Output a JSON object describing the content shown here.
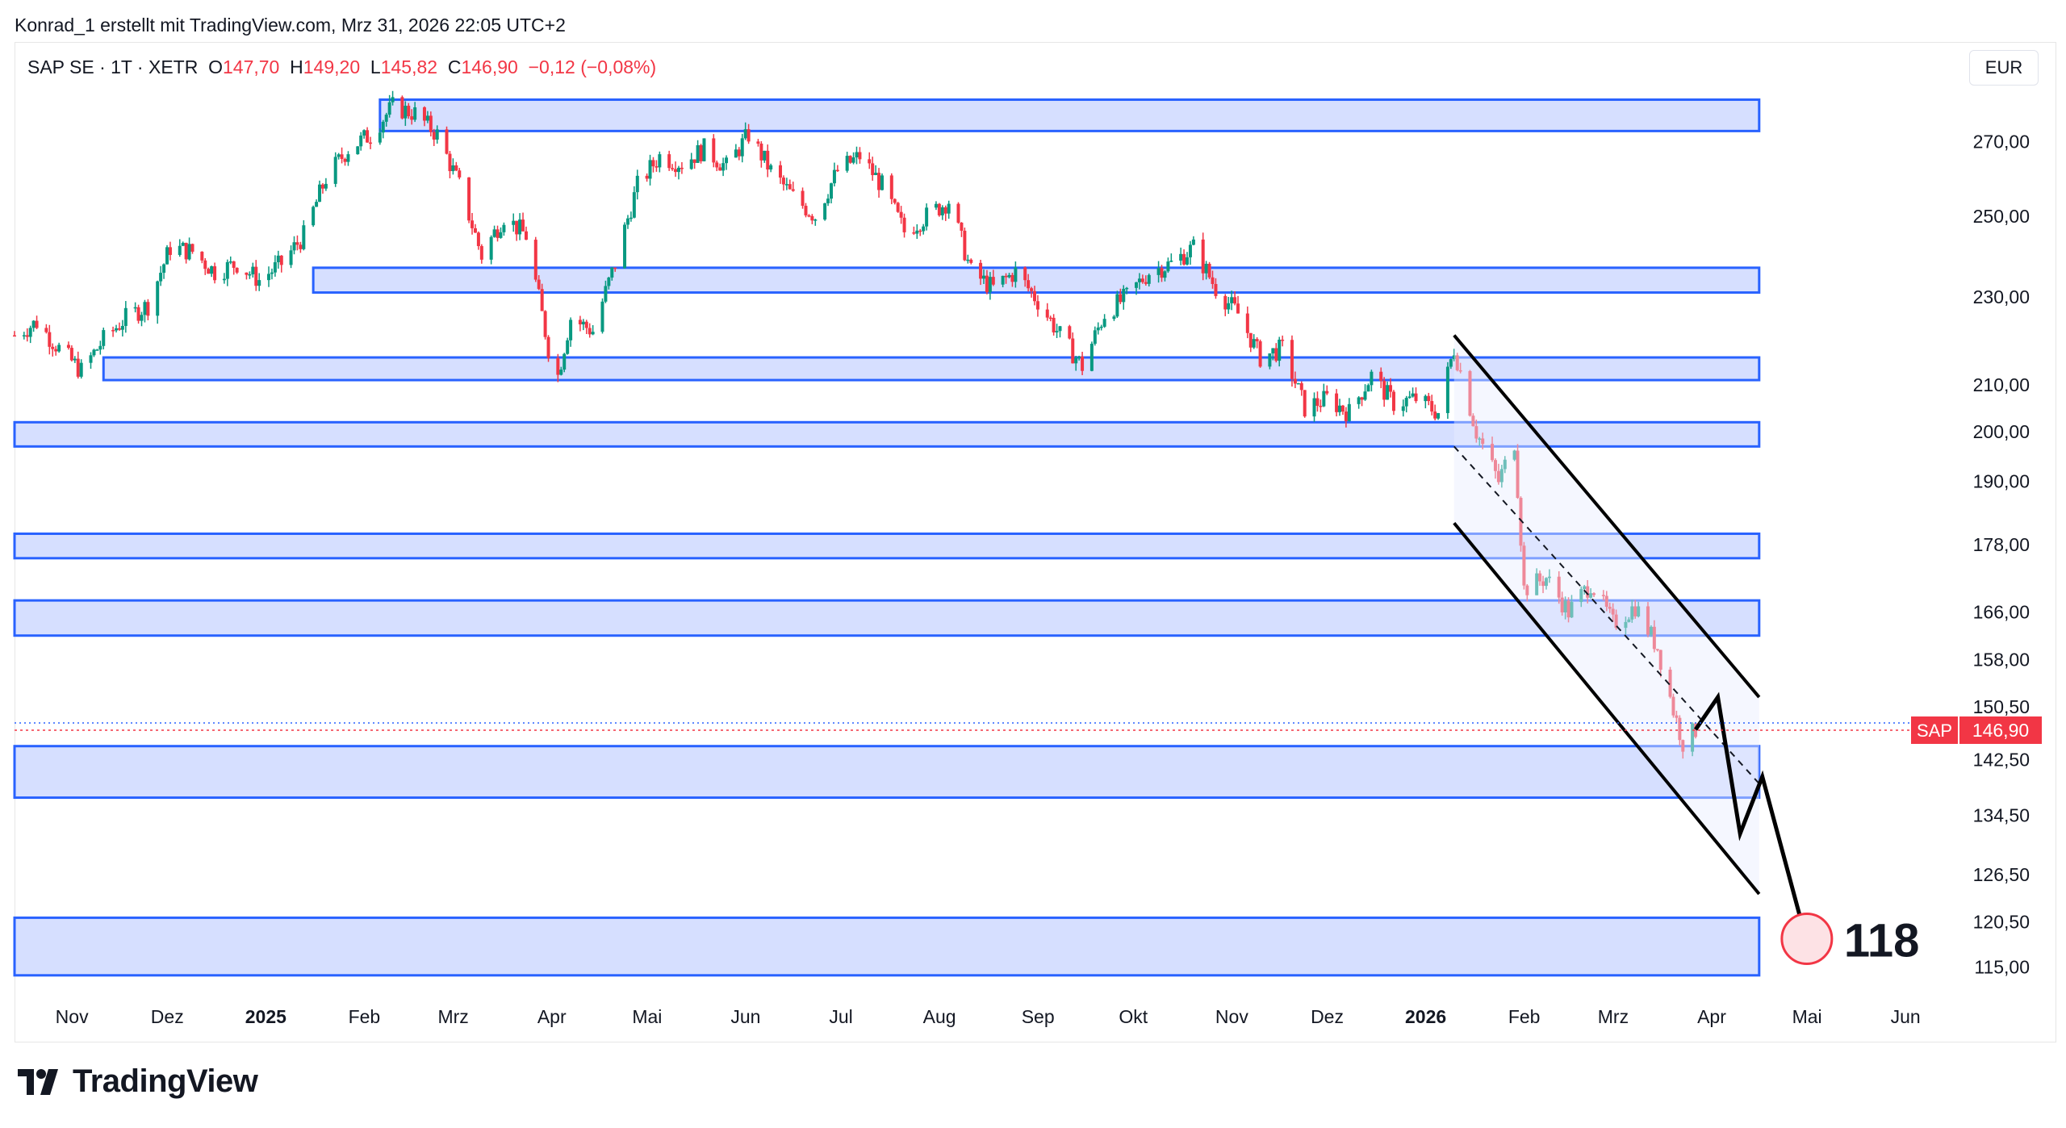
{
  "header": {
    "attribution": "Konrad_1 erstellt mit TradingView.com, Mrz 31, 2026 22:05 UTC+2"
  },
  "legend": {
    "symbol": "SAP SE · 1T · XETR",
    "open_label": "O",
    "open": "147,70",
    "high_label": "H",
    "high": "149,20",
    "low_label": "L",
    "low": "145,82",
    "close_label": "C",
    "close": "146,90",
    "change": "−0,12 (−0,08%)"
  },
  "currency": "EUR",
  "price_tag": {
    "symbol": "SAP",
    "value": "146,90"
  },
  "target": {
    "label": "118"
  },
  "brand": {
    "name": "TradingView"
  },
  "colors": {
    "up": "#089981",
    "down": "#f23645",
    "zone_fill": "#d1dcff",
    "zone_border": "#2962ff",
    "accent": "#f23645"
  },
  "chart_data": {
    "type": "candlestick",
    "symbol": "SAP SE",
    "interval": "1T",
    "exchange": "XETR",
    "currency": "EUR",
    "x_ticks": [
      {
        "date": "2024-11-01",
        "label": "Nov",
        "bold": false
      },
      {
        "date": "2024-12-01",
        "label": "Dez",
        "bold": false
      },
      {
        "date": "2025-01-01",
        "label": "2025",
        "bold": true
      },
      {
        "date": "2025-02-01",
        "label": "Feb",
        "bold": false
      },
      {
        "date": "2025-03-01",
        "label": "Mrz",
        "bold": false
      },
      {
        "date": "2025-04-01",
        "label": "Apr",
        "bold": false
      },
      {
        "date": "2025-05-01",
        "label": "Mai",
        "bold": false
      },
      {
        "date": "2025-06-01",
        "label": "Jun",
        "bold": false
      },
      {
        "date": "2025-07-01",
        "label": "Jul",
        "bold": false
      },
      {
        "date": "2025-08-01",
        "label": "Aug",
        "bold": false
      },
      {
        "date": "2025-09-01",
        "label": "Sep",
        "bold": false
      },
      {
        "date": "2025-10-01",
        "label": "Okt",
        "bold": false
      },
      {
        "date": "2025-11-01",
        "label": "Nov",
        "bold": false
      },
      {
        "date": "2025-12-01",
        "label": "Dez",
        "bold": false
      },
      {
        "date": "2026-01-01",
        "label": "2026",
        "bold": true
      },
      {
        "date": "2026-02-01",
        "label": "Feb",
        "bold": false
      },
      {
        "date": "2026-03-01",
        "label": "Mrz",
        "bold": false
      },
      {
        "date": "2026-04-01",
        "label": "Apr",
        "bold": false
      },
      {
        "date": "2026-05-01",
        "label": "Mai",
        "bold": false
      },
      {
        "date": "2026-06-01",
        "label": "Jun",
        "bold": false
      }
    ],
    "y_ticks": [
      {
        "value": 270,
        "label": "270,00"
      },
      {
        "value": 250,
        "label": "250,00"
      },
      {
        "value": 230,
        "label": "230,00"
      },
      {
        "value": 210,
        "label": "210,00"
      },
      {
        "value": 200,
        "label": "200,00"
      },
      {
        "value": 190,
        "label": "190,00"
      },
      {
        "value": 178,
        "label": "178,00"
      },
      {
        "value": 166,
        "label": "166,00"
      },
      {
        "value": 158,
        "label": "158,00"
      },
      {
        "value": 150.5,
        "label": "150,50"
      },
      {
        "value": 142.5,
        "label": "142,50"
      },
      {
        "value": 134.5,
        "label": "134,50"
      },
      {
        "value": 126.5,
        "label": "126,50"
      },
      {
        "value": 120.5,
        "label": "120,50"
      },
      {
        "value": 115,
        "label": "115,00"
      }
    ],
    "y_scale": "log",
    "y_range": [
      112,
      290
    ],
    "x_range": [
      "2024-10-18",
      "2026-06-20"
    ],
    "price_path": [
      [
        "2024-10-18",
        221
      ],
      [
        "2024-10-25",
        224
      ],
      [
        "2024-11-01",
        218
      ],
      [
        "2024-11-08",
        213
      ],
      [
        "2024-11-15",
        220
      ],
      [
        "2024-11-22",
        225
      ],
      [
        "2024-11-29",
        228
      ],
      [
        "2024-12-06",
        242
      ],
      [
        "2024-12-13",
        241
      ],
      [
        "2024-12-20",
        236
      ],
      [
        "2024-12-27",
        238
      ],
      [
        "2025-01-03",
        234
      ],
      [
        "2025-01-10",
        238
      ],
      [
        "2025-01-17",
        245
      ],
      [
        "2025-01-24",
        260
      ],
      [
        "2025-01-31",
        268
      ],
      [
        "2025-02-07",
        272
      ],
      [
        "2025-02-14",
        280
      ],
      [
        "2025-02-21",
        278
      ],
      [
        "2025-02-28",
        272
      ],
      [
        "2025-03-07",
        258
      ],
      [
        "2025-03-14",
        240
      ],
      [
        "2025-03-21",
        250
      ],
      [
        "2025-03-28",
        245
      ],
      [
        "2025-04-04",
        218
      ],
      [
        "2025-04-07",
        212
      ],
      [
        "2025-04-11",
        225
      ],
      [
        "2025-04-18",
        222
      ],
      [
        "2025-04-25",
        238
      ],
      [
        "2025-05-02",
        258
      ],
      [
        "2025-05-09",
        266
      ],
      [
        "2025-05-16",
        264
      ],
      [
        "2025-05-23",
        268
      ],
      [
        "2025-05-30",
        263
      ],
      [
        "2025-06-06",
        272
      ],
      [
        "2025-06-13",
        262
      ],
      [
        "2025-06-20",
        255
      ],
      [
        "2025-06-27",
        250
      ],
      [
        "2025-07-04",
        262
      ],
      [
        "2025-07-11",
        266
      ],
      [
        "2025-07-18",
        258
      ],
      [
        "2025-07-25",
        246
      ],
      [
        "2025-08-01",
        250
      ],
      [
        "2025-08-08",
        254
      ],
      [
        "2025-08-15",
        236
      ],
      [
        "2025-08-22",
        232
      ],
      [
        "2025-08-29",
        236
      ],
      [
        "2025-09-05",
        229
      ],
      [
        "2025-09-12",
        221
      ],
      [
        "2025-09-19",
        214
      ],
      [
        "2025-09-26",
        226
      ],
      [
        "2025-10-03",
        230
      ],
      [
        "2025-10-10",
        236
      ],
      [
        "2025-10-17",
        238
      ],
      [
        "2025-10-24",
        242
      ],
      [
        "2025-10-31",
        232
      ],
      [
        "2025-11-07",
        226
      ],
      [
        "2025-11-14",
        216
      ],
      [
        "2025-11-21",
        218
      ],
      [
        "2025-11-28",
        205
      ],
      [
        "2025-12-05",
        207
      ],
      [
        "2025-12-12",
        204
      ],
      [
        "2025-12-19",
        212
      ],
      [
        "2025-12-26",
        206
      ],
      [
        "2026-01-02",
        207
      ],
      [
        "2026-01-09",
        204
      ],
      [
        "2026-01-14",
        218
      ],
      [
        "2026-01-21",
        200
      ],
      [
        "2026-01-28",
        190
      ],
      [
        "2026-02-02",
        198
      ],
      [
        "2026-02-05",
        170
      ],
      [
        "2026-02-12",
        172
      ],
      [
        "2026-02-19",
        166
      ],
      [
        "2026-02-26",
        171
      ],
      [
        "2026-03-05",
        164
      ],
      [
        "2026-03-12",
        167
      ],
      [
        "2026-03-19",
        160
      ],
      [
        "2026-03-24",
        150
      ],
      [
        "2026-03-27",
        145
      ],
      [
        "2026-03-31",
        146.9
      ]
    ],
    "support_resistance_zones": [
      {
        "from": "2025-02-10",
        "to": "2026-04-20",
        "low": 273,
        "high": 282
      },
      {
        "from": "2025-01-20",
        "to": "2026-04-20",
        "low": 231,
        "high": 237
      },
      {
        "from": "2024-11-15",
        "to": "2026-04-20",
        "low": 211,
        "high": 216
      },
      {
        "from": "2024-10-18",
        "to": "2026-04-20",
        "low": 197,
        "high": 202
      },
      {
        "from": "2024-10-18",
        "to": "2026-04-20",
        "low": 175.5,
        "high": 180
      },
      {
        "from": "2024-10-18",
        "to": "2026-04-20",
        "low": 162,
        "high": 168
      },
      {
        "from": "2024-10-18",
        "to": "2026-04-20",
        "low": 137,
        "high": 144.5
      },
      {
        "from": "2024-10-18",
        "to": "2026-04-20",
        "low": 114,
        "high": 121
      }
    ],
    "channel": {
      "upper": [
        [
          "2026-01-14",
          221
        ],
        [
          "2026-04-20",
          152
        ]
      ],
      "lower": [
        [
          "2026-01-14",
          182
        ],
        [
          "2026-04-20",
          124
        ]
      ],
      "mid": [
        [
          "2026-01-14",
          197
        ],
        [
          "2026-04-20",
          139
        ]
      ]
    },
    "projection": [
      [
        "2026-03-31",
        147
      ],
      [
        "2026-04-07",
        152
      ],
      [
        "2026-04-14",
        132
      ],
      [
        "2026-04-21",
        140
      ],
      [
        "2026-05-05",
        118
      ]
    ],
    "current_price": 146.9,
    "target_price": 118
  }
}
